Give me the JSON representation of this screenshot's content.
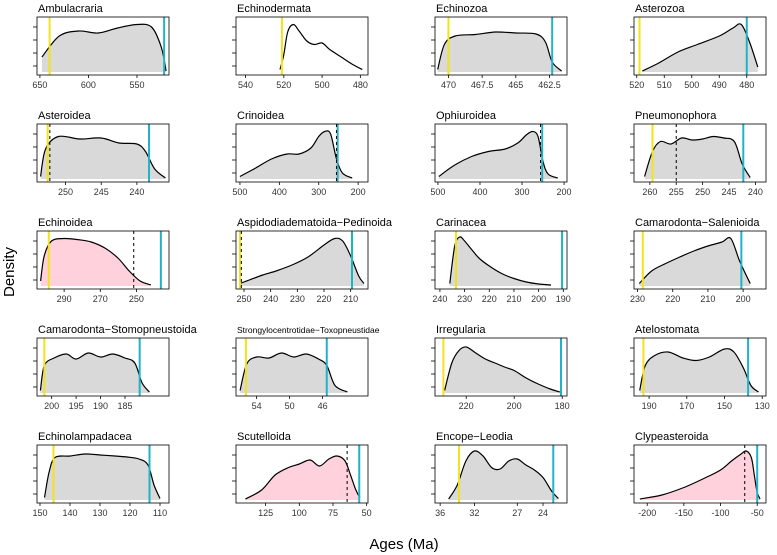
{
  "figure": {
    "ylabel": "Density",
    "xlabel": "Ages (Ma)"
  },
  "colors": {
    "fill_gray": "#d9d9d9",
    "fill_pink": "#ffd1dc",
    "yellow": "#f2e31a",
    "cyan": "#1fb3c6",
    "curve": "#000000"
  },
  "chart_data": [
    {
      "type": "area",
      "title": "Ambulacraria",
      "fill": "gray",
      "xlim": [
        653,
        517
      ],
      "ticks": [
        650,
        600,
        550
      ],
      "x": [
        648,
        630,
        610,
        590,
        570,
        550,
        535,
        525,
        520
      ],
      "y": [
        0.3,
        0.72,
        0.82,
        0.78,
        0.88,
        0.95,
        0.9,
        0.5,
        0.02
      ],
      "vlines": {
        "yellow": 640,
        "cyan": 522
      }
    },
    {
      "type": "area",
      "title": "Echinodermata",
      "fill": "none",
      "xlim": [
        545,
        476
      ],
      "ticks": [
        540,
        520,
        500,
        480
      ],
      "x": [
        522,
        520,
        518,
        515,
        512,
        508,
        504,
        500,
        496,
        490,
        484,
        479
      ],
      "y": [
        0.05,
        0.35,
        0.8,
        0.95,
        0.82,
        0.62,
        0.55,
        0.58,
        0.45,
        0.3,
        0.15,
        0.05
      ],
      "vlines": {
        "yellow": 521
      }
    },
    {
      "type": "area",
      "title": "Echinozoa",
      "fill": "gray",
      "xlim": [
        471,
        461.2
      ],
      "ticks": [
        470.0,
        467.5,
        465.0,
        462.5
      ],
      "x": [
        470.8,
        470.3,
        469.5,
        468,
        466.5,
        465,
        463.5,
        462.8,
        462.3,
        461.6
      ],
      "y": [
        0.05,
        0.55,
        0.72,
        0.75,
        0.8,
        0.78,
        0.76,
        0.6,
        0.2,
        0.02
      ],
      "vlines": {
        "yellow": 470.0,
        "cyan": 462.3
      }
    },
    {
      "type": "area",
      "title": "Asterozoa",
      "fill": "gray",
      "xlim": [
        521,
        473
      ],
      "ticks": [
        520,
        510,
        500,
        490,
        480
      ],
      "x": [
        518,
        512,
        505,
        498,
        490,
        485,
        482,
        479,
        476
      ],
      "y": [
        0.02,
        0.18,
        0.4,
        0.55,
        0.72,
        0.88,
        0.95,
        0.6,
        0.1
      ],
      "vlines": {
        "yellow": 519,
        "cyan": 480
      }
    },
    {
      "type": "area",
      "title": "Asteroidea",
      "fill": "gray",
      "xlim": [
        254,
        235.5
      ],
      "ticks": [
        250,
        245,
        240
      ],
      "x": [
        253.5,
        252.8,
        251,
        248,
        245,
        242.5,
        240,
        238.8,
        237.5,
        236
      ],
      "y": [
        0.05,
        0.6,
        0.85,
        0.8,
        0.82,
        0.72,
        0.7,
        0.55,
        0.2,
        0.02
      ],
      "vlines": {
        "yellow": 252.5,
        "cyan": 238.3
      },
      "dashed": 252.2
    },
    {
      "type": "area",
      "title": "Crinoidea",
      "fill": "gray",
      "xlim": [
        510,
        175
      ],
      "ticks": [
        500,
        400,
        300,
        200
      ],
      "x": [
        500,
        460,
        420,
        380,
        350,
        320,
        300,
        285,
        270,
        255,
        240,
        215
      ],
      "y": [
        0.05,
        0.22,
        0.4,
        0.5,
        0.5,
        0.62,
        0.85,
        0.95,
        0.9,
        0.4,
        0.12,
        0.02
      ],
      "vlines": {
        "cyan": 252
      },
      "dashed": 255
    },
    {
      "type": "area",
      "title": "Ophiuroidea",
      "fill": "gray",
      "xlim": [
        507,
        193
      ],
      "ticks": [
        500,
        400,
        300,
        200
      ],
      "x": [
        498,
        460,
        420,
        380,
        340,
        310,
        290,
        275,
        262,
        250,
        238,
        215
      ],
      "y": [
        0.05,
        0.28,
        0.45,
        0.55,
        0.6,
        0.72,
        0.88,
        0.95,
        0.85,
        0.35,
        0.1,
        0.02
      ],
      "vlines": {
        "cyan": 252
      },
      "dashed": 256
    },
    {
      "type": "area",
      "title": "Pneumonophora",
      "fill": "gray",
      "xlim": [
        263,
        238
      ],
      "ticks": [
        260,
        255,
        250,
        245,
        240
      ],
      "x": [
        261,
        259.5,
        258,
        256,
        254,
        252,
        250,
        248,
        246,
        244,
        242.5,
        241
      ],
      "y": [
        0.05,
        0.55,
        0.75,
        0.7,
        0.82,
        0.78,
        0.8,
        0.85,
        0.82,
        0.75,
        0.3,
        0.03
      ],
      "vlines": {
        "yellow": 259.5,
        "cyan": 242.3
      },
      "dashed": 255
    },
    {
      "type": "area",
      "title": "Echinoidea",
      "fill": "pink",
      "xlim": [
        305,
        232
      ],
      "ticks": [
        290,
        270,
        250
      ],
      "x": [
        303,
        301,
        297,
        290,
        283,
        275,
        267,
        260,
        254,
        248,
        242
      ],
      "y": [
        0.1,
        0.6,
        0.9,
        0.95,
        0.93,
        0.88,
        0.75,
        0.55,
        0.3,
        0.1,
        0.02
      ],
      "vlines": {
        "yellow": 298.5,
        "cyan": 236.5
      },
      "dashed": 251.5
    },
    {
      "type": "area",
      "title": "Aspidodiadematoida−Pedinoida",
      "fill": "gray",
      "xlim": [
        253,
        203.5
      ],
      "ticks": [
        250,
        240,
        230,
        220,
        210
      ],
      "x": [
        251.5,
        248,
        243,
        238,
        232,
        226,
        220,
        216,
        213,
        210,
        207,
        205
      ],
      "y": [
        0.05,
        0.12,
        0.22,
        0.3,
        0.42,
        0.58,
        0.82,
        0.95,
        0.9,
        0.6,
        0.2,
        0.05
      ],
      "vlines": {
        "yellow": 251.5,
        "cyan": 209.5
      },
      "dashed": 251
    },
    {
      "type": "area",
      "title": "Carinacea",
      "fill": "gray",
      "xlim": [
        242,
        188.5
      ],
      "ticks": [
        240,
        230,
        220,
        210,
        200,
        190
      ],
      "x": [
        236,
        234,
        232,
        230,
        227,
        224,
        220,
        215,
        210,
        205,
        200,
        195
      ],
      "y": [
        0.05,
        0.8,
        0.98,
        0.9,
        0.72,
        0.55,
        0.4,
        0.25,
        0.15,
        0.08,
        0.04,
        0.02
      ],
      "vlines": {
        "yellow": 233.5,
        "cyan": 190.5
      }
    },
    {
      "type": "area",
      "title": "Camarodonta−Salenioida",
      "fill": "gray",
      "xlim": [
        231,
        193.5
      ],
      "ticks": [
        230,
        220,
        210,
        200
      ],
      "x": [
        229.5,
        226,
        222,
        218,
        214,
        210,
        206,
        203.5,
        201,
        198
      ],
      "y": [
        0.05,
        0.3,
        0.45,
        0.58,
        0.7,
        0.8,
        0.88,
        0.95,
        0.5,
        0.05
      ],
      "vlines": {
        "yellow": 228.5,
        "cyan": 200.5
      }
    },
    {
      "type": "area",
      "title": "Camarodonta−Stomopneustoida",
      "fill": "gray",
      "xlim": [
        203,
        176
      ],
      "ticks": [
        200,
        195,
        190,
        185
      ],
      "x": [
        202.3,
        201.5,
        199.5,
        197,
        195,
        192.5,
        190,
        187.5,
        185,
        183,
        181.5,
        180
      ],
      "y": [
        0.05,
        0.55,
        0.7,
        0.78,
        0.68,
        0.8,
        0.72,
        0.78,
        0.7,
        0.6,
        0.2,
        0.02
      ],
      "vlines": {
        "yellow": 201.5,
        "cyan": 182
      }
    },
    {
      "type": "area",
      "title": "Strongylocentrotidae−Toxopneustidae",
      "fill": "gray",
      "xlim": [
        56.5,
        40.5
      ],
      "ticks": [
        54,
        50,
        46
      ],
      "x": [
        56,
        55.2,
        54,
        52.5,
        51,
        49.5,
        48,
        46.5,
        45.5,
        44.5,
        43
      ],
      "y": [
        0.05,
        0.58,
        0.72,
        0.7,
        0.8,
        0.72,
        0.78,
        0.68,
        0.55,
        0.15,
        0.02
      ],
      "vlines": {
        "yellow": 55.3,
        "cyan": 45.5
      }
    },
    {
      "type": "area",
      "title": "Irregularia",
      "fill": "gray",
      "xlim": [
        233,
        178
      ],
      "ticks": [
        220,
        200,
        180
      ],
      "x": [
        229,
        226,
        223,
        220,
        216,
        212,
        208,
        204,
        200,
        195,
        190,
        185,
        181
      ],
      "y": [
        0.05,
        0.6,
        0.85,
        0.92,
        0.8,
        0.68,
        0.6,
        0.52,
        0.45,
        0.3,
        0.18,
        0.08,
        0.02
      ],
      "vlines": {
        "yellow": 229.5,
        "cyan": 180.5
      }
    },
    {
      "type": "area",
      "title": "Atelostomata",
      "fill": "gray",
      "xlim": [
        198,
        128
      ],
      "ticks": [
        190,
        170,
        150,
        130
      ],
      "x": [
        195,
        192,
        187,
        180,
        172,
        165,
        158,
        150,
        145,
        140,
        136,
        132
      ],
      "y": [
        0.05,
        0.55,
        0.75,
        0.82,
        0.7,
        0.65,
        0.72,
        0.88,
        0.82,
        0.5,
        0.15,
        0.02
      ],
      "vlines": {
        "yellow": 193,
        "cyan": 137.5
      }
    },
    {
      "type": "area",
      "title": "Echinolampadacea",
      "fill": "gray",
      "xlim": [
        151,
        107
      ],
      "ticks": [
        150,
        140,
        130,
        120,
        110
      ],
      "x": [
        148.5,
        147,
        145,
        140,
        135,
        130,
        125,
        121,
        117,
        114,
        112,
        110
      ],
      "y": [
        0.05,
        0.55,
        0.85,
        0.88,
        0.92,
        0.9,
        0.88,
        0.86,
        0.82,
        0.7,
        0.3,
        0.03
      ],
      "vlines": {
        "yellow": 145.5,
        "cyan": 113.5
      }
    },
    {
      "type": "area",
      "title": "Scutelloida",
      "fill": "pink",
      "xlim": [
        147,
        49
      ],
      "ticks": [
        125,
        100,
        75,
        50
      ],
      "x": [
        140,
        128,
        118,
        108,
        100,
        92,
        85,
        78,
        72,
        66,
        62,
        58,
        55
      ],
      "y": [
        0.02,
        0.2,
        0.5,
        0.65,
        0.72,
        0.8,
        0.68,
        0.82,
        0.88,
        0.78,
        0.5,
        0.2,
        0.05
      ],
      "vlines": {
        "cyan": 55.5
      },
      "dashed": 64.5
    },
    {
      "type": "area",
      "title": "Encope−Leodia",
      "fill": "gray",
      "xlim": [
        36.6,
        21.2
      ],
      "ticks": [
        36,
        32,
        27,
        24
      ],
      "x": [
        35,
        34,
        33,
        32,
        31,
        30,
        29,
        28,
        27,
        26,
        25,
        24,
        23,
        22.2
      ],
      "y": [
        0.02,
        0.3,
        0.78,
        0.98,
        0.88,
        0.65,
        0.62,
        0.78,
        0.82,
        0.7,
        0.6,
        0.45,
        0.18,
        0.03
      ],
      "vlines": {
        "yellow": 33.8,
        "cyan": 22.8
      }
    },
    {
      "type": "area",
      "title": "Clypeasteroida",
      "fill": "pink",
      "xlim": [
        -218,
        -38
      ],
      "ticks": [
        -200,
        -150,
        -100,
        -50
      ],
      "x": [
        -210,
        -180,
        -150,
        -120,
        -100,
        -85,
        -72,
        -65,
        -58,
        -54,
        -50,
        -46
      ],
      "y": [
        0.02,
        0.1,
        0.25,
        0.45,
        0.6,
        0.78,
        0.92,
        0.98,
        0.85,
        0.5,
        0.15,
        0.02
      ],
      "vlines": {
        "cyan": -50
      },
      "dashed": -67
    }
  ]
}
